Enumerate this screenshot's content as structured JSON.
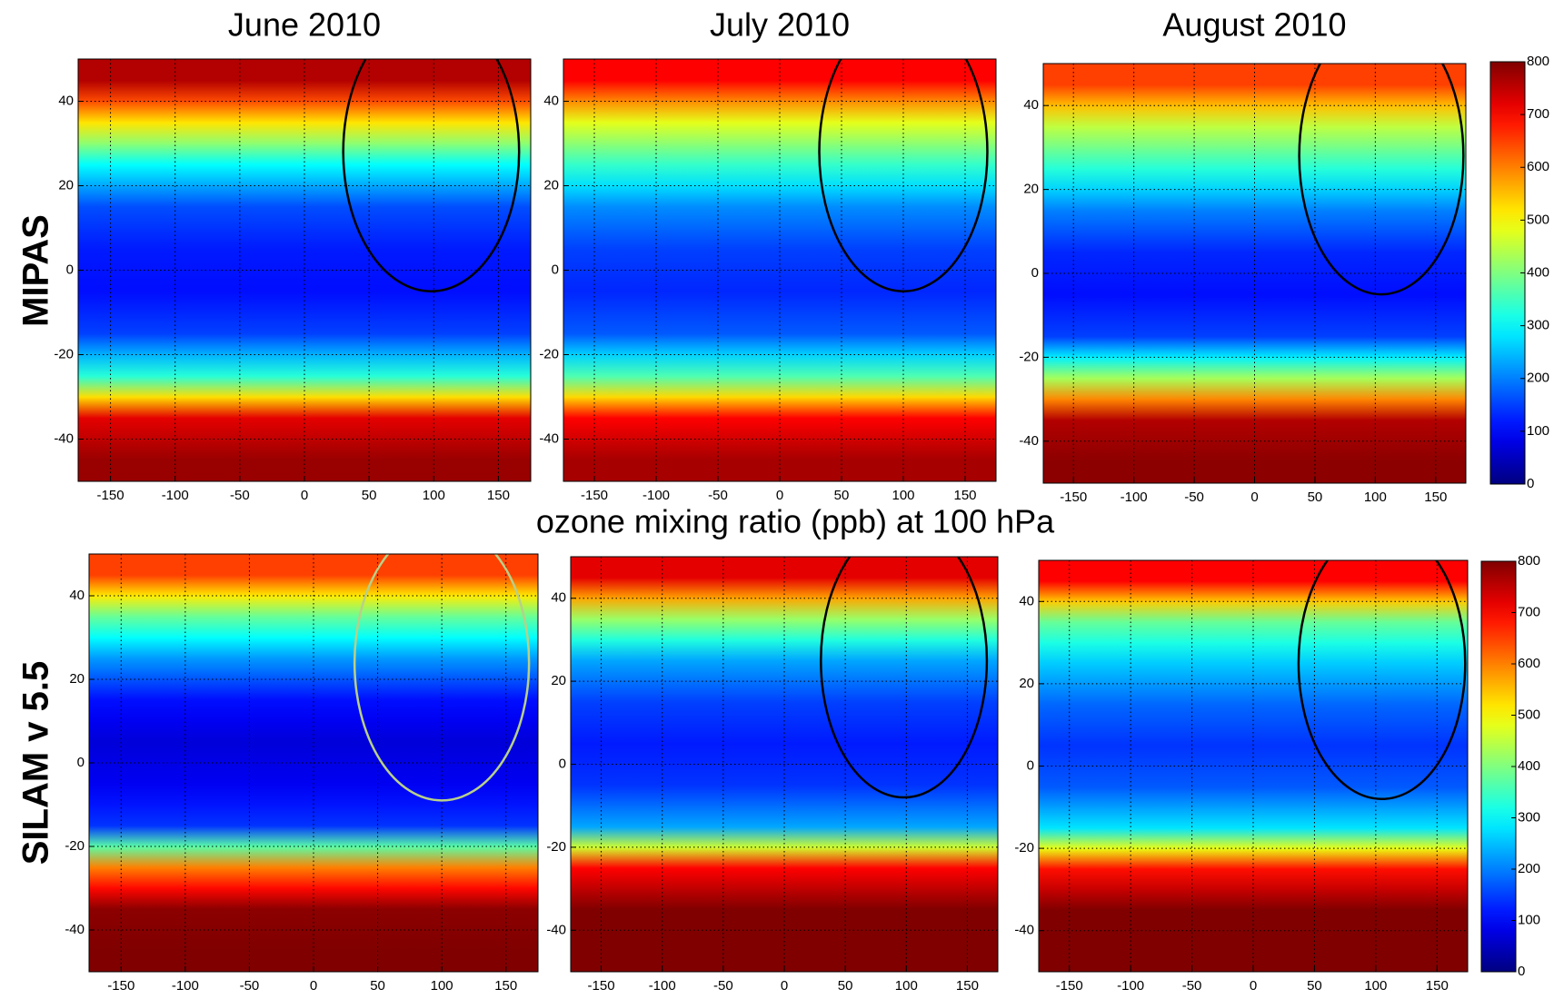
{
  "row_labels": [
    "MIPAS",
    "SILAM v 5.5"
  ],
  "center_label": "ozone mixing ratio (ppb) at 100 hPa",
  "colorbars": [
    {
      "colormap": "jet",
      "clim": [
        0,
        800
      ],
      "ticks": [
        0,
        100,
        200,
        300,
        400,
        500,
        600,
        700,
        800
      ]
    },
    {
      "colormap": "jet",
      "clim": [
        0,
        800
      ],
      "ticks": [
        0,
        100,
        200,
        300,
        400,
        500,
        600,
        700,
        800
      ]
    }
  ],
  "chart_data": [
    {
      "type": "heatmap",
      "title": "June 2010",
      "colormap": "jet",
      "grid": true,
      "xlim": [
        -175,
        175
      ],
      "xticks": [
        -150,
        -100,
        -50,
        0,
        50,
        100,
        150
      ],
      "ylim": [
        -50,
        50
      ],
      "yticks": [
        -40,
        -20,
        0,
        20,
        40
      ],
      "y_bins": [
        -50,
        -40,
        -30,
        -20,
        -10,
        0,
        10,
        20,
        30,
        40,
        50
      ],
      "values": [
        780,
        720,
        330,
        150,
        110,
        120,
        160,
        300,
        520,
        760
      ]
    },
    {
      "type": "heatmap",
      "title": "July 2010",
      "colormap": "jet",
      "grid": true,
      "xlim": [
        -175,
        175
      ],
      "xticks": [
        -150,
        -100,
        -50,
        0,
        50,
        100,
        150
      ],
      "ylim": [
        -50,
        50
      ],
      "yticks": [
        -40,
        -20,
        0,
        20,
        40
      ],
      "y_bins": [
        -50,
        -40,
        -30,
        -20,
        -10,
        0,
        10,
        20,
        30,
        40,
        50
      ],
      "values": [
        770,
        700,
        360,
        170,
        130,
        150,
        210,
        340,
        480,
        700
      ]
    },
    {
      "type": "heatmap",
      "title": "August 2010",
      "colormap": "jet",
      "grid": true,
      "xlim": [
        -175,
        175
      ],
      "xticks": [
        -150,
        -100,
        -50,
        0,
        50,
        100,
        150
      ],
      "ylim": [
        -50,
        50
      ],
      "yticks": [
        -40,
        -20,
        0,
        20,
        40
      ],
      "y_bins": [
        -50,
        -40,
        -30,
        -20,
        -10,
        0,
        10,
        20,
        30,
        40,
        50
      ],
      "values": [
        790,
        760,
        430,
        150,
        110,
        130,
        200,
        330,
        450,
        650
      ]
    },
    {
      "type": "heatmap",
      "colormap": "jet",
      "grid": true,
      "xlim": [
        -175,
        175
      ],
      "xticks": [
        -150,
        -100,
        -50,
        0,
        50,
        100,
        150
      ],
      "ylim": [
        -50,
        50
      ],
      "yticks": [
        -40,
        -20,
        0,
        20,
        40
      ],
      "y_bins": [
        -50,
        -40,
        -30,
        -20,
        -10,
        0,
        10,
        20,
        30,
        40,
        50
      ],
      "values": [
        800,
        790,
        600,
        140,
        90,
        70,
        110,
        220,
        380,
        650
      ]
    },
    {
      "type": "heatmap",
      "colormap": "jet",
      "grid": true,
      "xlim": [
        -175,
        175
      ],
      "xticks": [
        -150,
        -100,
        -50,
        0,
        50,
        100,
        150
      ],
      "ylim": [
        -50,
        50
      ],
      "yticks": [
        -40,
        -20,
        0,
        20,
        40
      ],
      "y_bins": [
        -50,
        -40,
        -30,
        -20,
        -10,
        0,
        10,
        20,
        30,
        40,
        50
      ],
      "values": [
        800,
        800,
        700,
        230,
        140,
        120,
        150,
        230,
        420,
        720
      ]
    },
    {
      "type": "heatmap",
      "colormap": "jet",
      "grid": true,
      "xlim": [
        -175,
        175
      ],
      "xticks": [
        -150,
        -100,
        -50,
        0,
        50,
        100,
        150
      ],
      "ylim": [
        -50,
        50
      ],
      "yticks": [
        -40,
        -20,
        0,
        20,
        40
      ],
      "y_bins": [
        -50,
        -40,
        -30,
        -20,
        -10,
        0,
        10,
        20,
        30,
        40,
        50
      ],
      "values": [
        800,
        800,
        690,
        280,
        170,
        140,
        180,
        260,
        380,
        700
      ]
    }
  ]
}
